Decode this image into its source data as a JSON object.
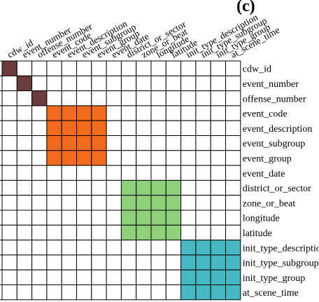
{
  "panel_label": "(c)",
  "columns": [
    "cdw_id",
    "event_number",
    "offense_number",
    "event_code",
    "event_description",
    "event_subgroup",
    "event_group",
    "event_date",
    "district_or_sector",
    "zone_or_beat",
    "longitude",
    "latitude",
    "init_type_description",
    "init_type_subgroup",
    "init_type_group",
    "at_scene_time"
  ],
  "rows": [
    "cdw_id",
    "event_number",
    "offense_number",
    "event_code",
    "event_description",
    "event_subgroup",
    "event_group",
    "event_date",
    "district_or_sector",
    "zone_or_beat",
    "longitude",
    "latitude",
    "init_type_description",
    "init_type_subgroup",
    "init_type_group",
    "at_scene_time"
  ],
  "blocks": [
    {
      "start": 0,
      "end": 0,
      "color": "#6b3c3c"
    },
    {
      "start": 1,
      "end": 1,
      "color": "#6b3c3c"
    },
    {
      "start": 2,
      "end": 2,
      "color": "#6b3c3c"
    },
    {
      "start": 3,
      "end": 6,
      "color": "#f26b1d"
    },
    {
      "start": 8,
      "end": 11,
      "color": "#8fd07a"
    },
    {
      "start": 12,
      "end": 15,
      "color": "#45b8c4"
    }
  ],
  "colors": {
    "grid": "#000000",
    "panel_label": "#e0201b",
    "background": "#ffffff"
  }
}
